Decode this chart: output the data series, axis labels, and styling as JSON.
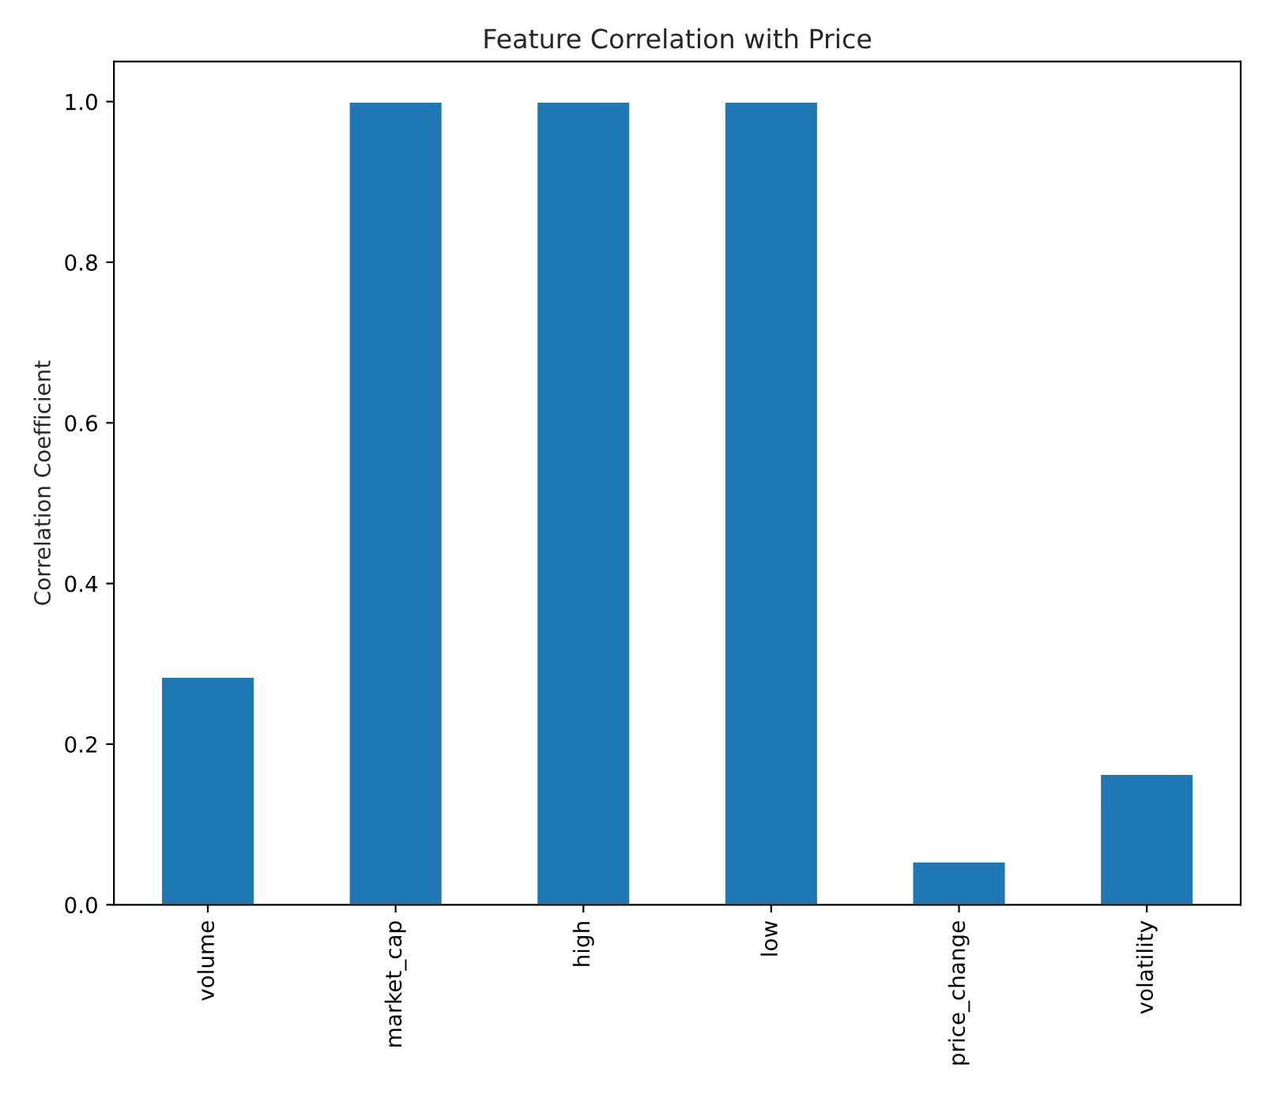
{
  "chart_data": {
    "type": "bar",
    "title": "Feature Correlation with Price",
    "ylabel": "Correlation Coefficient",
    "categories": [
      "volume",
      "market_cap",
      "high",
      "low",
      "price_change",
      "volatility"
    ],
    "values": [
      0.284,
      1.0,
      1.0,
      1.0,
      0.054,
      0.163
    ],
    "color": "#1f77b4",
    "ylim": [
      0,
      1.05
    ],
    "yticks": [
      {
        "value": 0,
        "label": "0.0"
      },
      0.2,
      0.4,
      0.6,
      0.8,
      {
        "value": 1,
        "label": "1.0"
      }
    ],
    "grid": false
  }
}
